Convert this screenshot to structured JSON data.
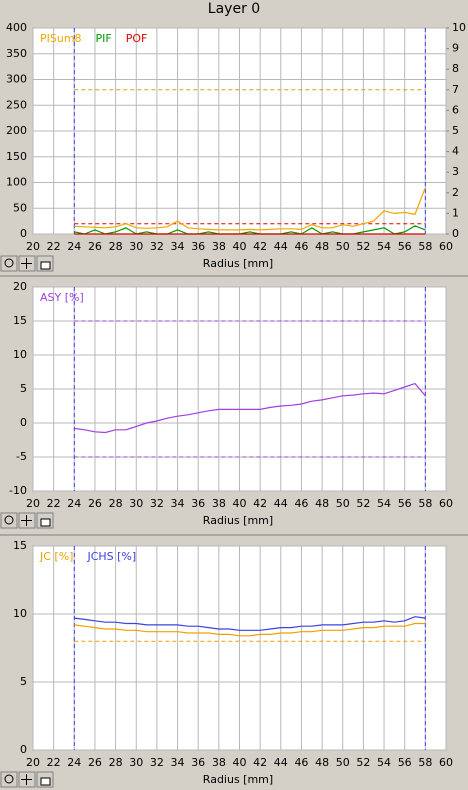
{
  "chart_data": [
    {
      "type": "line",
      "title": "Layer 0",
      "xlabel": "Radius [mm]",
      "x": [
        24,
        25,
        26,
        27,
        28,
        29,
        30,
        31,
        32,
        33,
        34,
        35,
        36,
        37,
        38,
        39,
        40,
        41,
        42,
        43,
        44,
        45,
        46,
        47,
        48,
        49,
        50,
        51,
        52,
        53,
        54,
        55,
        56,
        57,
        58
      ],
      "xlim": [
        20,
        60
      ],
      "xticks": [
        20,
        22,
        24,
        26,
        28,
        30,
        32,
        34,
        36,
        38,
        40,
        42,
        44,
        46,
        48,
        50,
        52,
        54,
        56,
        58,
        60
      ],
      "ylim": [
        0,
        400
      ],
      "yticks": [
        0,
        50,
        100,
        150,
        200,
        250,
        300,
        350,
        400
      ],
      "y2lim": [
        0,
        10
      ],
      "y2ticks": [
        0,
        1,
        2,
        3,
        4,
        5,
        6,
        7,
        8,
        9,
        10
      ],
      "grid": true,
      "series": [
        {
          "name": "PISum8",
          "color": "#f0a800",
          "values": [
            15,
            14,
            13,
            12,
            14,
            20,
            12,
            11,
            12,
            14,
            25,
            12,
            10,
            9,
            8,
            8,
            8,
            9,
            8,
            9,
            10,
            10,
            9,
            18,
            12,
            12,
            18,
            15,
            20,
            25,
            45,
            40,
            42,
            38,
            90
          ]
        },
        {
          "name": "PIF",
          "color": "#00a000",
          "axis": "y2",
          "values": [
            0.1,
            0,
            0.2,
            0,
            0.1,
            0.3,
            0,
            0.1,
            0,
            0,
            0.2,
            0,
            0,
            0.1,
            0,
            0,
            0,
            0.1,
            0,
            0,
            0,
            0.1,
            0,
            0.3,
            0,
            0.1,
            0,
            0,
            0.1,
            0.2,
            0.3,
            0,
            0.1,
            0.4,
            0.2
          ]
        },
        {
          "name": "POF",
          "color": "#e00000",
          "axis": "y2",
          "values": [
            0,
            0,
            0,
            0,
            0,
            0,
            0,
            0,
            0,
            0,
            0,
            0,
            0,
            0,
            0,
            0,
            0,
            0,
            0,
            0,
            0,
            0,
            0,
            0,
            0,
            0,
            0,
            0,
            0,
            0,
            0,
            0,
            0,
            0,
            0
          ]
        }
      ],
      "hlines": [
        {
          "value": 280,
          "color": "#e0a000"
        },
        {
          "value": 20,
          "color": "#e00000"
        }
      ],
      "vlines": [
        {
          "value": 24,
          "color": "#4040ff"
        },
        {
          "value": 58,
          "color": "#4040ff"
        }
      ]
    },
    {
      "type": "line",
      "xlabel": "Radius [mm]",
      "x": [
        24,
        25,
        26,
        27,
        28,
        29,
        30,
        31,
        32,
        33,
        34,
        35,
        36,
        37,
        38,
        39,
        40,
        41,
        42,
        43,
        44,
        45,
        46,
        47,
        48,
        49,
        50,
        51,
        52,
        53,
        54,
        55,
        56,
        57,
        58
      ],
      "xlim": [
        20,
        60
      ],
      "xticks": [
        20,
        22,
        24,
        26,
        28,
        30,
        32,
        34,
        36,
        38,
        40,
        42,
        44,
        46,
        48,
        50,
        52,
        54,
        56,
        58,
        60
      ],
      "ylim": [
        -10,
        20
      ],
      "yticks": [
        -10,
        -5,
        0,
        5,
        10,
        15,
        20
      ],
      "grid": true,
      "series": [
        {
          "name": "ASY [%]",
          "color": "#a040e0",
          "values": [
            -0.8,
            -1,
            -1.3,
            -1.4,
            -1,
            -1,
            -0.5,
            0,
            0.3,
            0.7,
            1,
            1.2,
            1.5,
            1.8,
            2,
            2,
            2,
            2,
            2,
            2.3,
            2.5,
            2.6,
            2.8,
            3.2,
            3.4,
            3.7,
            4,
            4.1,
            4.3,
            4.4,
            4.3,
            4.8,
            5.3,
            5.8,
            4
          ]
        }
      ],
      "hlines": [
        {
          "value": 15,
          "color": "#a040e0"
        },
        {
          "value": -5,
          "color": "#a040e0"
        }
      ],
      "vlines": [
        {
          "value": 24,
          "color": "#4040ff"
        },
        {
          "value": 58,
          "color": "#4040ff"
        }
      ]
    },
    {
      "type": "line",
      "xlabel": "Radius [mm]",
      "x": [
        24,
        25,
        26,
        27,
        28,
        29,
        30,
        31,
        32,
        33,
        34,
        35,
        36,
        37,
        38,
        39,
        40,
        41,
        42,
        43,
        44,
        45,
        46,
        47,
        48,
        49,
        50,
        51,
        52,
        53,
        54,
        55,
        56,
        57,
        58
      ],
      "xlim": [
        20,
        60
      ],
      "xticks": [
        20,
        22,
        24,
        26,
        28,
        30,
        32,
        34,
        36,
        38,
        40,
        42,
        44,
        46,
        48,
        50,
        52,
        54,
        56,
        58,
        60
      ],
      "ylim": [
        0,
        15
      ],
      "yticks": [
        0,
        5,
        10,
        15
      ],
      "grid": true,
      "series": [
        {
          "name": "JC [%]",
          "color": "#f0a000",
          "values": [
            9.2,
            9.1,
            9,
            8.9,
            8.9,
            8.8,
            8.8,
            8.7,
            8.7,
            8.7,
            8.7,
            8.6,
            8.6,
            8.6,
            8.5,
            8.5,
            8.4,
            8.4,
            8.5,
            8.5,
            8.6,
            8.6,
            8.7,
            8.7,
            8.8,
            8.8,
            8.8,
            8.9,
            9,
            9,
            9.1,
            9.1,
            9.1,
            9.3,
            9.3
          ]
        },
        {
          "name": "JCHS [%]",
          "color": "#4040e0",
          "values": [
            9.7,
            9.6,
            9.5,
            9.4,
            9.4,
            9.3,
            9.3,
            9.2,
            9.2,
            9.2,
            9.2,
            9.1,
            9.1,
            9,
            8.9,
            8.9,
            8.8,
            8.8,
            8.8,
            8.9,
            9,
            9,
            9.1,
            9.1,
            9.2,
            9.2,
            9.2,
            9.3,
            9.4,
            9.4,
            9.5,
            9.4,
            9.5,
            9.8,
            9.7
          ]
        }
      ],
      "hlines": [
        {
          "value": 8,
          "color": "#f0a000"
        }
      ],
      "vlines": [
        {
          "value": 24,
          "color": "#4040ff"
        },
        {
          "value": 58,
          "color": "#4040ff"
        }
      ]
    }
  ]
}
